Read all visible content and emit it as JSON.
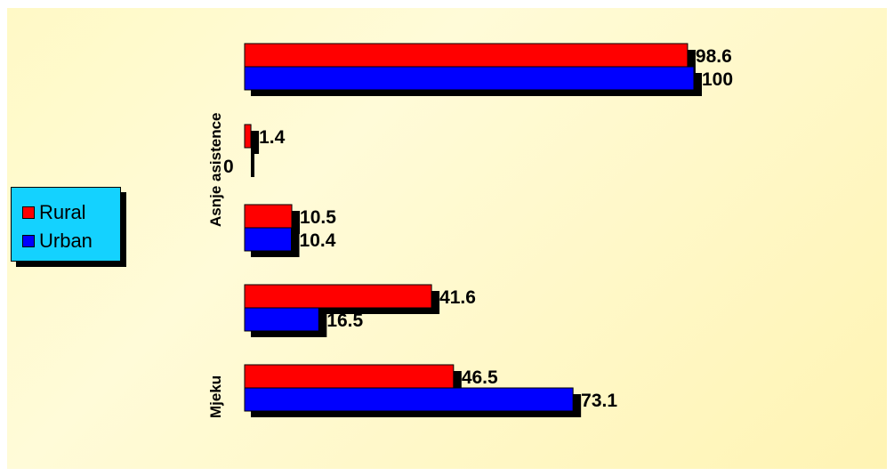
{
  "chart_data": {
    "type": "bar",
    "orientation": "horizontal",
    "categories": [
      "",
      "Asnje asistence",
      "",
      "",
      "Mjeku"
    ],
    "series": [
      {
        "name": "Rural",
        "color": "#ff0000",
        "values": [
          98.6,
          1.4,
          10.5,
          41.6,
          46.5
        ]
      },
      {
        "name": "Urban",
        "color": "#0000ff",
        "values": [
          100,
          0,
          10.4,
          16.5,
          73.1
        ]
      }
    ],
    "value_labels": {
      "Rural": [
        "98.6",
        "1.4",
        "10.5",
        "41.6",
        "46.5"
      ],
      "Urban": [
        "100",
        "0",
        "10.4",
        "16.5",
        "73.1"
      ]
    },
    "xlim": [
      0,
      100
    ],
    "grid": false,
    "legend_position": "left",
    "background": "#fff9c6"
  },
  "legend": {
    "items": [
      {
        "label": "Rural",
        "color": "#ff0000"
      },
      {
        "label": "Urban",
        "color": "#0000ff"
      }
    ],
    "background": "#14d2ff"
  },
  "category_labels": {
    "cat1": "Asnje asistence",
    "cat4": "Mjeku"
  }
}
